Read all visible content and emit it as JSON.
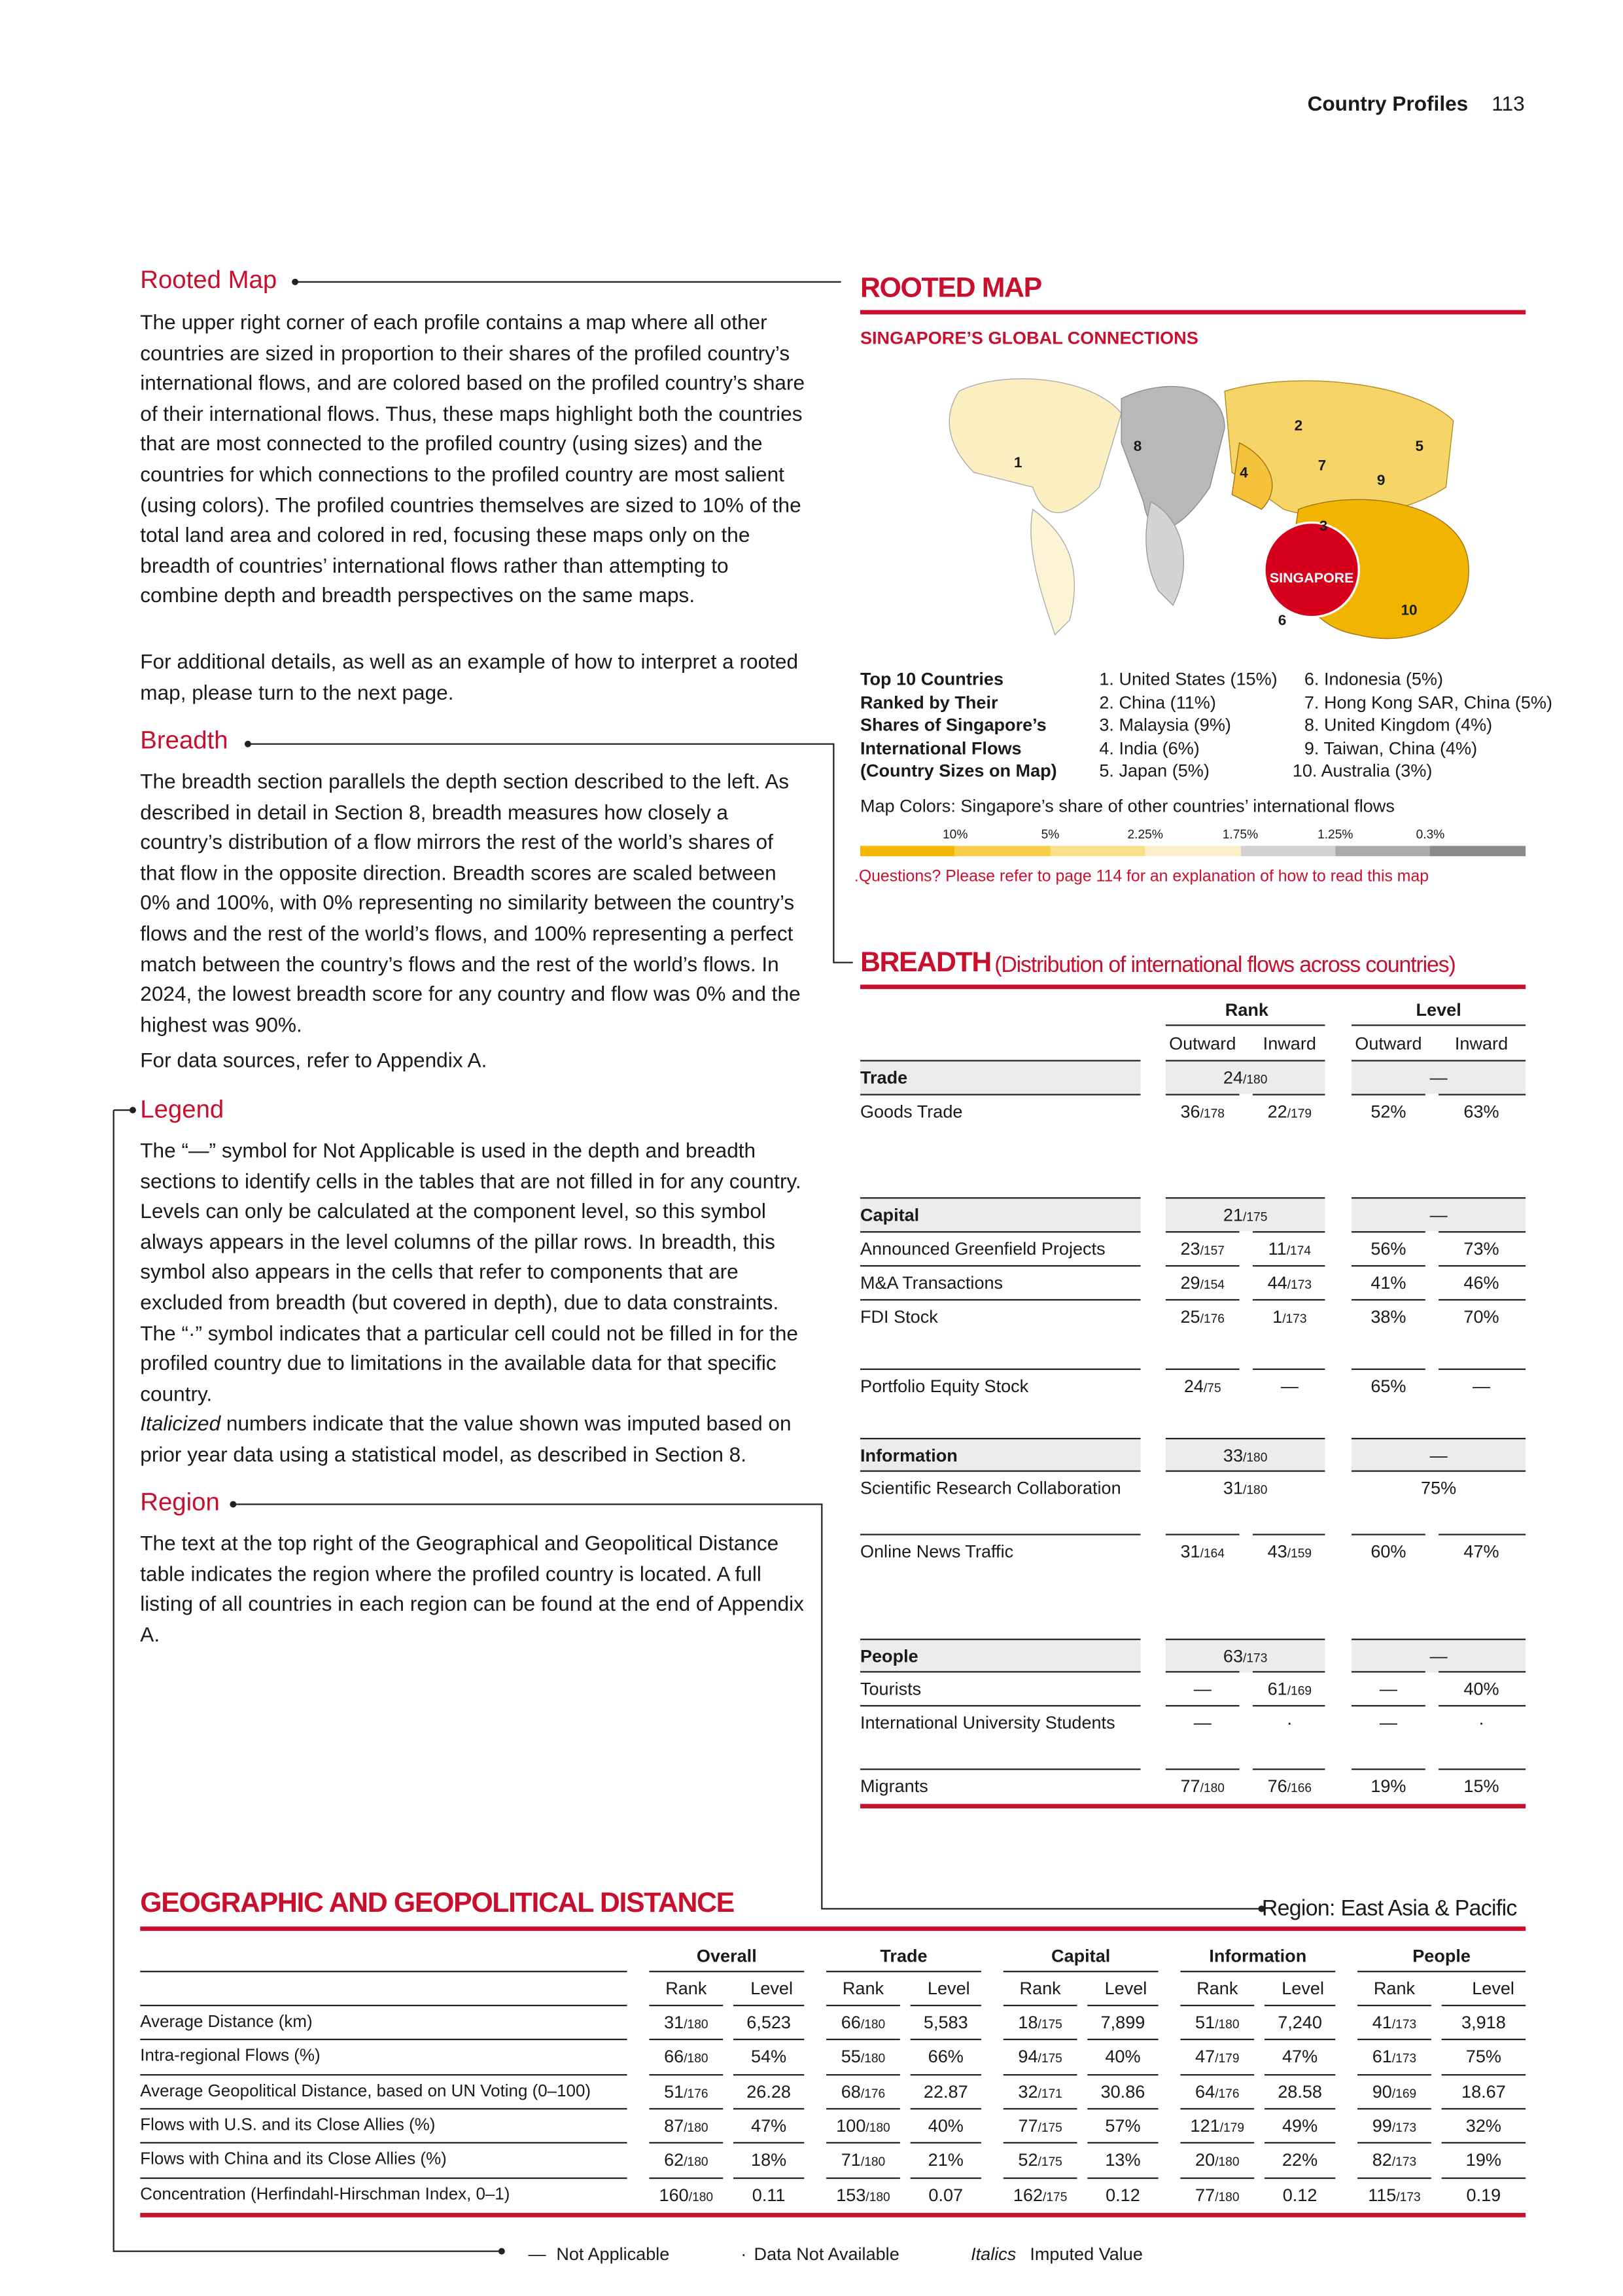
{
  "header": {
    "section": "Country Profiles",
    "page": "113"
  },
  "guide": {
    "rooted_map": {
      "title": "Rooted Map",
      "paragraphs": [
        "The upper right corner of each profile contains a map where all other countries are sized in proportion to their shares of the profiled country’s international flows, and are colored based on the profiled country’s share of their international flows. Thus, these maps highlight both the countries that are most connected to the profiled country (using sizes) and the countries for which connections to the profiled country are most salient (using colors). The profiled countries themselves are sized to 10% of the total land area and colored in red, focusing these maps only on the breadth of countries’ international flows rather than attempting to combine depth and breadth perspectives on the same maps.",
        "For additional details, as well as an example of how to interpret a rooted map, please turn to the next page."
      ]
    },
    "breadth": {
      "title": "Breadth",
      "paragraphs": [
        "The breadth section parallels the depth section described to the left. As described in detail in Section 8, breadth measures how closely a country’s distribution of a flow mirrors the rest of the world’s shares of that flow in the opposite direction. Breadth scores are scaled between 0% and 100%, with 0% representing no similarity between the country’s flows and the rest of the world’s flows, and 100% representing a perfect match between the country’s flows and the rest of the world’s flows. In 2024, the lowest breadth score for any country and flow was 0% and the highest was 90%.",
        "For data sources, refer to Appendix A."
      ]
    },
    "legend": {
      "title": "Legend",
      "paragraph": "The “—” symbol for Not Applicable is used in the depth and breadth sections to identify cells in the tables that are not filled in for any country. Levels can only be calculated at the component level, so this symbol always appears in the level columns of the pillar rows. In breadth, this symbol also appears in the cells that refer to components that are excluded from breadth (but covered in depth), due to data constraints. The “·” symbol indicates that a particular cell could not be filled in for the profiled country due to limitations in the available data for that specific country.",
      "italic_word": "Italicized",
      "paragraph_end": "numbers indicate that the value shown was imputed based on prior year data using a statistical model, as described in Section 8."
    },
    "region": {
      "title": "Region",
      "paragraph": "The text at the top right of the Geographical and Geopolitical Distance table indicates the region where the profiled country is located. A full listing of all countries in each region can be found at the end of Appendix A."
    }
  },
  "rooted_map": {
    "title": "ROOTED MAP",
    "subtitle": "SINGAPORE’S GLOBAL CONNECTIONS",
    "map_labels": [
      "1",
      "2",
      "3",
      "4",
      "5",
      "6",
      "7",
      "8",
      "9",
      "10"
    ],
    "profiled_country": "SINGAPORE",
    "top10_heading": [
      "Top 10 Countries",
      "Ranked by Their",
      "Shares of Singapore’s",
      "International Flows",
      "(Country Sizes on Map)"
    ],
    "top10": [
      "1. United States (15%)",
      "2. China (11%)",
      "3. Malaysia (9%)",
      "4. India (6%)",
      "5. Japan (5%)",
      "6. Indonesia (5%)",
      "7. Hong Kong SAR, China (5%)",
      "8. United Kingdom (4%)",
      "9. Taiwan, China (4%)",
      "10. Australia (3%)"
    ],
    "colors_title": "Map Colors: Singapore’s share of other countries’ international flows",
    "color_scale": [
      "10%",
      "5%",
      "2.25%",
      "1.75%",
      "1.25%",
      "0.3%"
    ],
    "note": ".Questions? Please refer to page 114 for an explanation of how to read this map"
  },
  "breadth_table": {
    "title": "BREADTH",
    "subtitle": "(Distribution of international flows across countries)",
    "rank": "Rank",
    "level": "Level",
    "sub_headers": [
      "Outward",
      "Inward",
      "Outward",
      "Inward"
    ],
    "groups": [
      {
        "pillar": {
          "label": "Trade",
          "rank": "24/180",
          "level": "—"
        },
        "rows": [
          {
            "label": "Goods Trade",
            "cells": [
              "36/178",
              "22/179",
              "52%",
              "63%"
            ]
          }
        ]
      },
      {
        "pillar": {
          "label": "Capital",
          "rank": "21/175",
          "level": "—"
        },
        "rows": [
          {
            "label": "Announced Greenfield Projects",
            "cells": [
              "23/157",
              "11/174",
              "56%",
              "73%"
            ]
          },
          {
            "label": "M&A Transactions",
            "cells": [
              "29/154",
              "44/173",
              "41%",
              "46%"
            ]
          },
          {
            "label": "FDI Stock",
            "cells": [
              "25/176",
              "1/173",
              "38%",
              "70%"
            ]
          },
          {
            "label": "Portfolio Equity Stock",
            "cells": [
              "24/75",
              "—",
              "65%",
              "—"
            ]
          }
        ]
      },
      {
        "pillar": {
          "label": "Information",
          "rank": "33/180",
          "level": "—"
        },
        "rows": [
          {
            "label": "Scientific Research Collaboration",
            "rank": "31/180",
            "level": "75%"
          },
          {
            "label": "Online News Traffic",
            "cells": [
              "31/164",
              "43/159",
              "60%",
              "47%"
            ]
          }
        ]
      },
      {
        "pillar": {
          "label": "People",
          "rank": "63/173",
          "level": "—"
        },
        "rows": [
          {
            "label": "Tourists",
            "cells": [
              "—",
              "61/169",
              "—",
              "40%"
            ]
          },
          {
            "label": "International University Students",
            "cells": [
              "—",
              "·",
              "—",
              "·"
            ]
          },
          {
            "label": "Migrants",
            "cells": [
              "77/180",
              "76/166",
              "19%",
              "15%"
            ]
          }
        ]
      }
    ]
  },
  "distance_table": {
    "title": "GEOGRAPHIC AND GEOPOLITICAL DISTANCE",
    "region": "Region: East Asia & Pacific",
    "groups": [
      "Overall",
      "Trade",
      "Capital",
      "Information",
      "People"
    ],
    "sub_headers": [
      "Rank",
      "Level"
    ],
    "rows": [
      {
        "label": "Average Distance (km)",
        "cells": [
          "31/180",
          "6,523",
          "66/180",
          "5,583",
          "18/175",
          "7,899",
          "51/180",
          "7,240",
          "41/173",
          "3,918"
        ]
      },
      {
        "label": "Intra-regional Flows (%)",
        "cells": [
          "66/180",
          "54%",
          "55/180",
          "66%",
          "94/175",
          "40%",
          "47/179",
          "47%",
          "61/173",
          "75%"
        ]
      },
      {
        "label": "Average Geopolitical Distance, based on UN Voting (0–100)",
        "cells": [
          "51/176",
          "26.28",
          "68/176",
          "22.87",
          "32/171",
          "30.86",
          "64/176",
          "28.58",
          "90/169",
          "18.67"
        ]
      },
      {
        "label": "Flows with U.S. and its Close Allies (%)",
        "cells": [
          "87/180",
          "47%",
          "100/180",
          "40%",
          "77/175",
          "57%",
          "121/179",
          "49%",
          "99/173",
          "32%"
        ]
      },
      {
        "label": "Flows with China and its Close Allies (%)",
        "cells": [
          "62/180",
          "18%",
          "71/180",
          "21%",
          "52/175",
          "13%",
          "20/180",
          "22%",
          "82/173",
          "19%"
        ]
      },
      {
        "label": "Concentration (Herfindahl-Hirschman Index, 0–1)",
        "cells": [
          "160/180",
          "0.11",
          "153/180",
          "0.07",
          "162/175",
          "0.12",
          "77/180",
          "0.12",
          "115/173",
          "0.19"
        ]
      }
    ]
  },
  "footer": {
    "items": [
      {
        "symbol": "—",
        "label": "Not Applicable"
      },
      {
        "symbol": "·",
        "label": "Data Not Available"
      },
      {
        "symbol": "Italics",
        "label": "Imputed Value"
      }
    ]
  }
}
